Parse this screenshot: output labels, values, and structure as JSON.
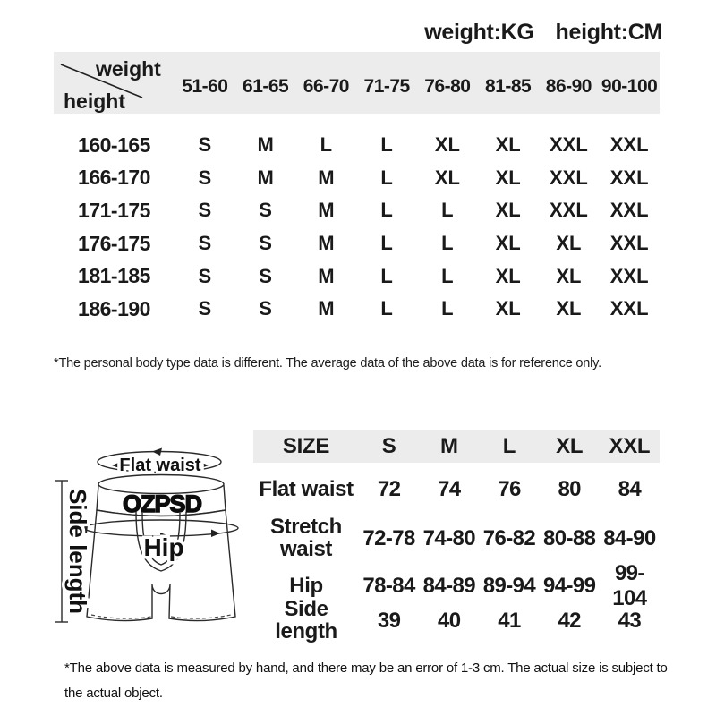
{
  "page": {
    "units_label_weight": "weight:KG",
    "units_label_height": "height:CM"
  },
  "size_chart": {
    "corner": {
      "top": "weight",
      "bottom": "height"
    },
    "weight_columns": [
      "51-60",
      "61-65",
      "66-70",
      "71-75",
      "76-80",
      "81-85",
      "86-90",
      "90-100"
    ],
    "rows": [
      {
        "height": "160-165",
        "sizes": [
          "S",
          "M",
          "L",
          "L",
          "XL",
          "XL",
          "XXL",
          "XXL"
        ]
      },
      {
        "height": "166-170",
        "sizes": [
          "S",
          "M",
          "M",
          "L",
          "XL",
          "XL",
          "XXL",
          "XXL"
        ]
      },
      {
        "height": "171-175",
        "sizes": [
          "S",
          "S",
          "M",
          "L",
          "L",
          "XL",
          "XXL",
          "XXL"
        ]
      },
      {
        "height": "176-175",
        "sizes": [
          "S",
          "S",
          "M",
          "L",
          "L",
          "XL",
          "XL",
          "XXL"
        ]
      },
      {
        "height": "181-185",
        "sizes": [
          "S",
          "S",
          "M",
          "L",
          "L",
          "XL",
          "XL",
          "XXL"
        ]
      },
      {
        "height": "186-190",
        "sizes": [
          "S",
          "S",
          "M",
          "L",
          "L",
          "XL",
          "XL",
          "XXL"
        ]
      }
    ],
    "note": "*The personal body type data is different. The average data of the above data is for reference only."
  },
  "measurements_table": {
    "header": [
      "SIZE",
      "S",
      "M",
      "L",
      "XL",
      "XXL"
    ],
    "rows": [
      {
        "label": "Flat waist",
        "values": [
          "72",
          "74",
          "76",
          "80",
          "84"
        ]
      },
      {
        "label": "Stretch\nwaist",
        "values": [
          "72-78",
          "74-80",
          "76-82",
          "80-88",
          "84-90"
        ]
      },
      {
        "label": "Hip",
        "values": [
          "78-84",
          "84-89",
          "89-94",
          "94-99",
          "99-104"
        ]
      },
      {
        "label": "Side length",
        "values": [
          "39",
          "40",
          "41",
          "42",
          "43"
        ]
      }
    ],
    "note": "*The above data is measured by hand, and there may be an error of 1-3 cm. The actual size is subject to\nthe actual object."
  },
  "diagram": {
    "brand": "OZPSD",
    "labels": {
      "flat_waist": "Flat waist",
      "hip": "Hip",
      "side_length": "Side length"
    }
  },
  "colors": {
    "text": "#1a1a1a",
    "header_bg": "#ececec",
    "line": "#2a2a2a"
  }
}
